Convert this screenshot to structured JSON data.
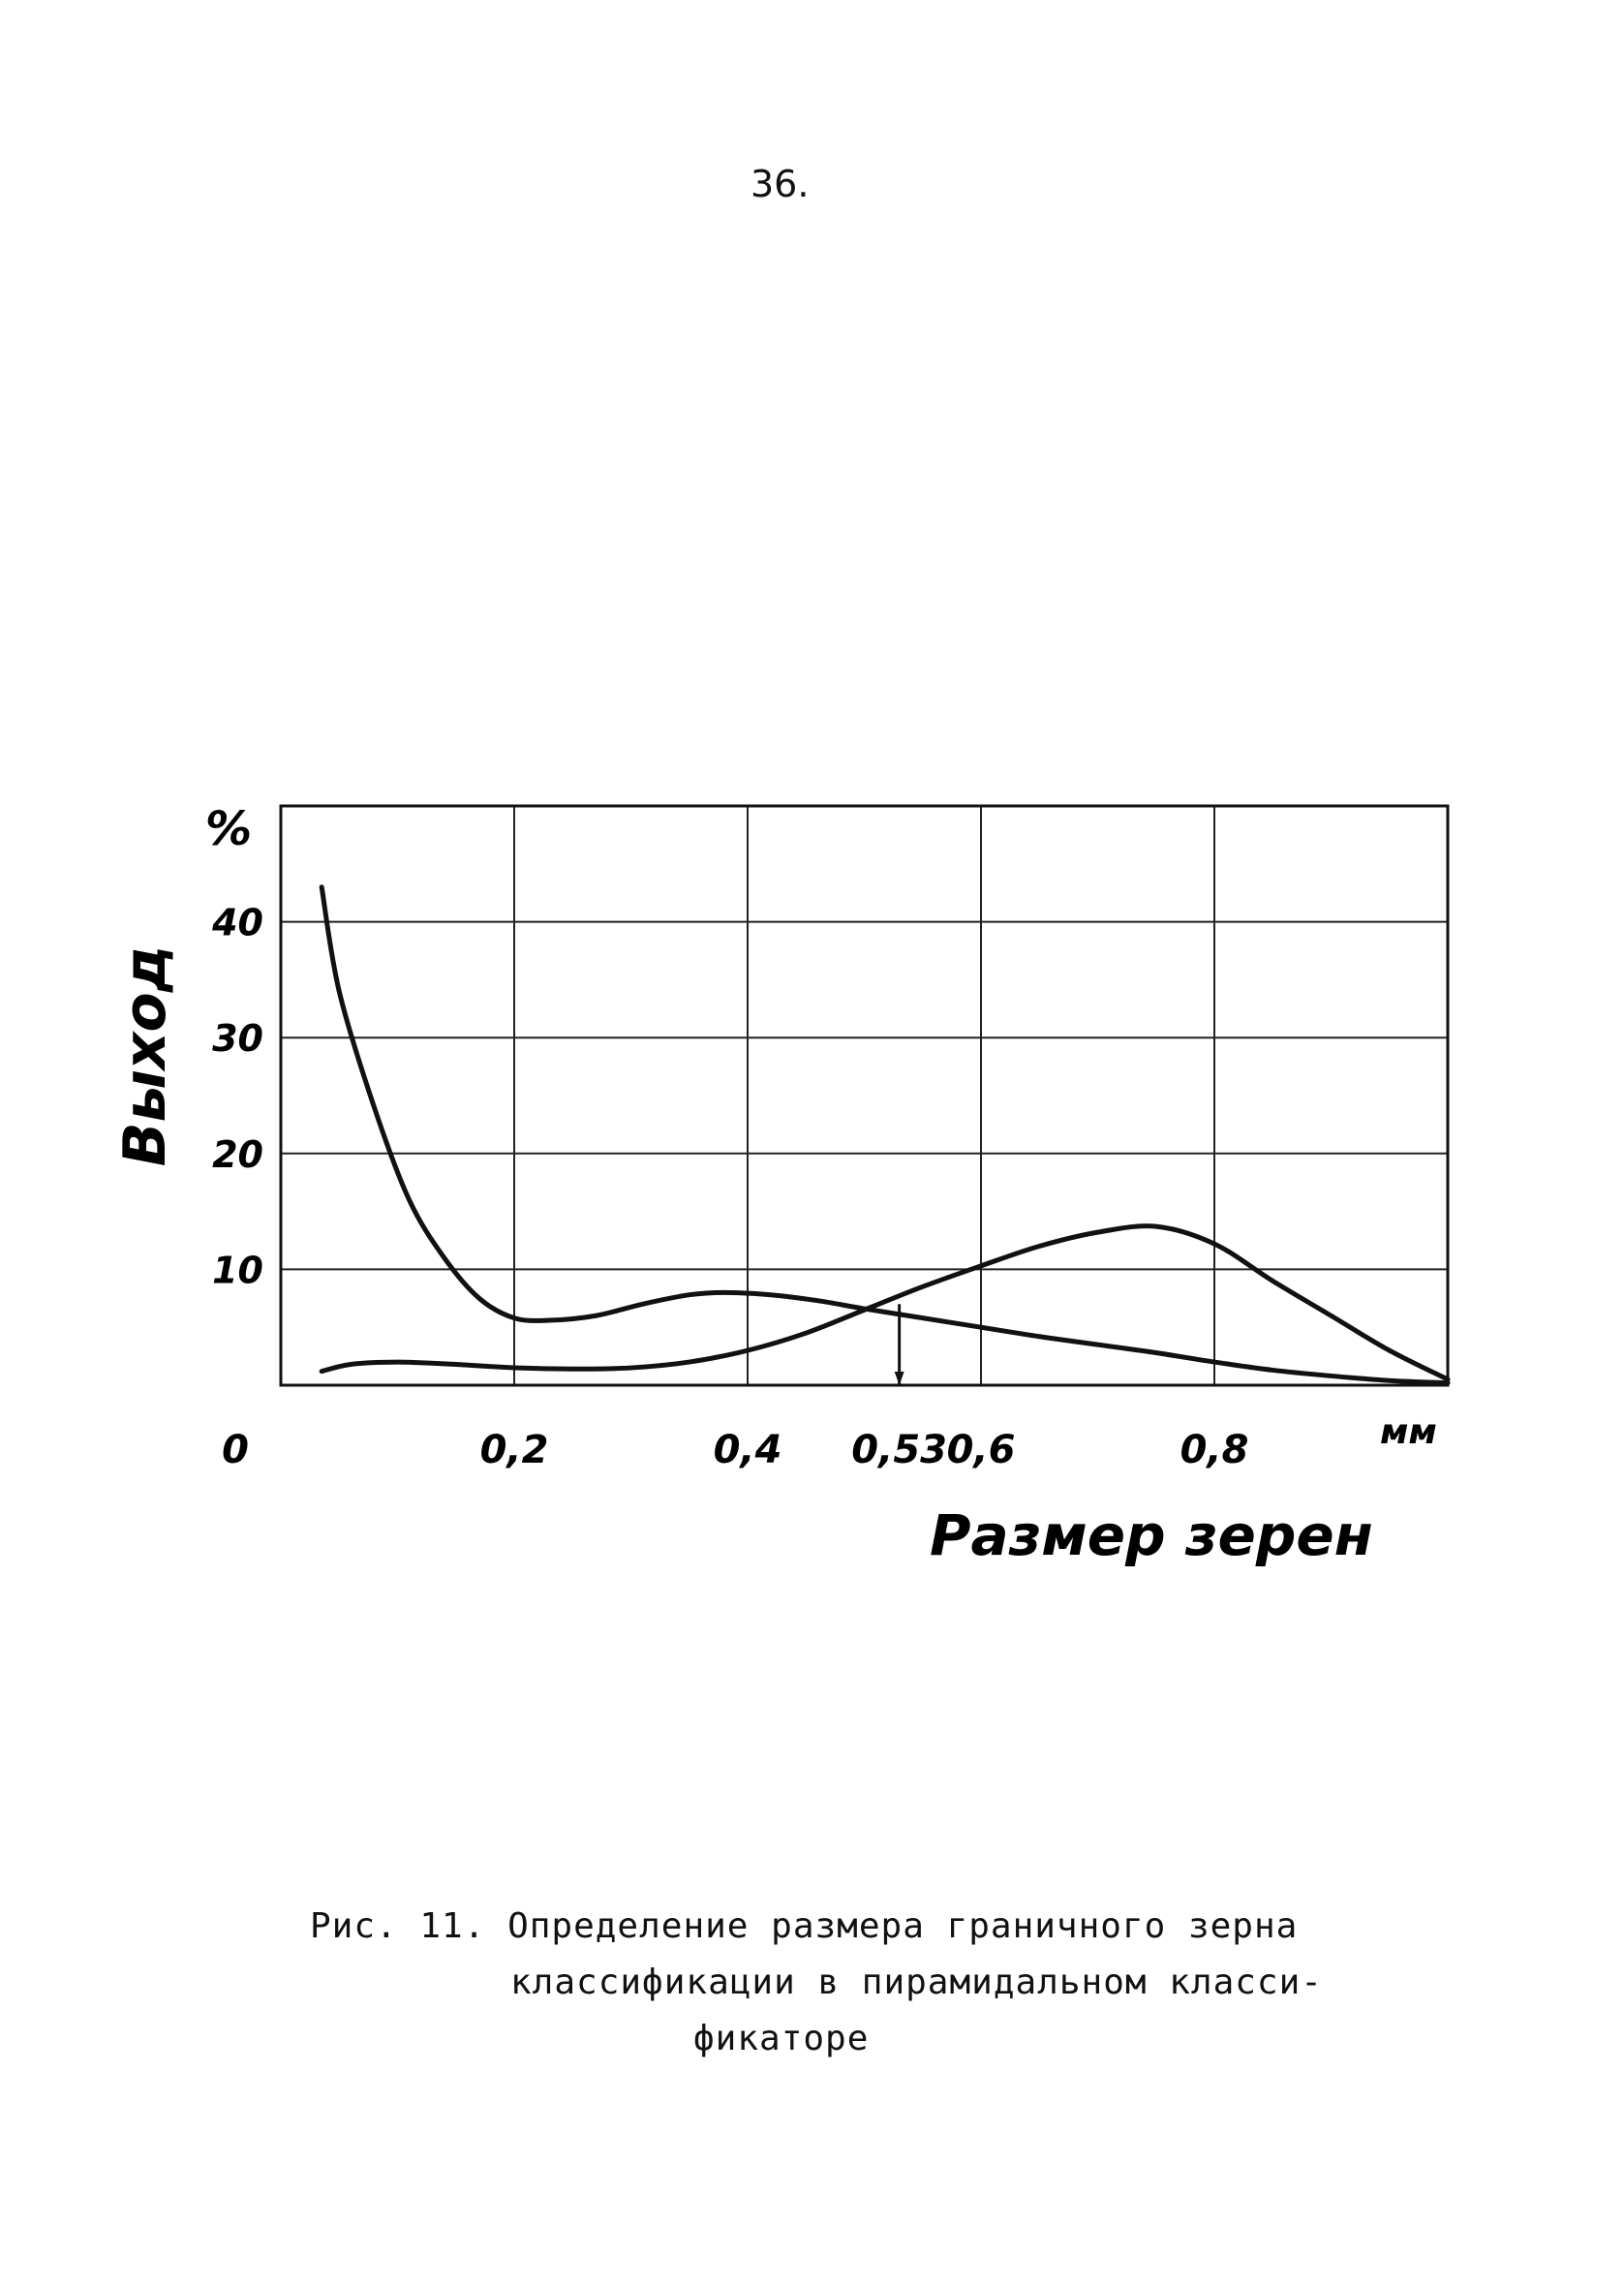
{
  "page": {
    "number": "36."
  },
  "chart_data": {
    "type": "line",
    "ylabel": "Выход",
    "y_unit": "%",
    "xlabel": "Размер зерен",
    "x_unit": "мм",
    "xlim": [
      0,
      1.0
    ],
    "ylim": [
      0,
      50
    ],
    "grid": true,
    "x_ticks": [
      {
        "value": 0,
        "label": "0"
      },
      {
        "value": 0.2,
        "label": "0,2"
      },
      {
        "value": 0.4,
        "label": "0,4"
      },
      {
        "value": 0.53,
        "label": "0,53"
      },
      {
        "value": 0.6,
        "label": "0,6"
      },
      {
        "value": 0.8,
        "label": "0,8"
      }
    ],
    "y_ticks": [
      {
        "value": 10,
        "label": "10"
      },
      {
        "value": 20,
        "label": "20"
      },
      {
        "value": 30,
        "label": "30"
      },
      {
        "value": 40,
        "label": "40"
      }
    ],
    "marker_x": 0.53,
    "series": [
      {
        "x": [
          0.035,
          0.05,
          0.08,
          0.11,
          0.14,
          0.17,
          0.2,
          0.23,
          0.27,
          0.31,
          0.35,
          0.38,
          0.42,
          0.46,
          0.5,
          0.55,
          0.6,
          0.65,
          0.7,
          0.75,
          0.8,
          0.85,
          0.9,
          0.95,
          1.0
        ],
        "values": [
          43,
          34,
          24,
          16,
          11,
          7.5,
          5.8,
          5.6,
          6.0,
          7.0,
          7.8,
          8.0,
          7.8,
          7.3,
          6.6,
          5.8,
          5.0,
          4.2,
          3.5,
          2.8,
          2.0,
          1.3,
          0.8,
          0.4,
          0.2
        ]
      },
      {
        "x": [
          0.035,
          0.06,
          0.1,
          0.15,
          0.2,
          0.25,
          0.3,
          0.35,
          0.4,
          0.45,
          0.5,
          0.55,
          0.6,
          0.65,
          0.7,
          0.75,
          0.8,
          0.85,
          0.9,
          0.95,
          1.0
        ],
        "values": [
          1.2,
          1.8,
          2.0,
          1.8,
          1.5,
          1.4,
          1.5,
          2.0,
          3.0,
          4.5,
          6.5,
          8.5,
          10.3,
          12.0,
          13.2,
          13.7,
          12.2,
          9.0,
          6.0,
          3.0,
          0.5
        ]
      }
    ]
  },
  "caption": {
    "line1": "Рис. 11. Определение размера граничного зерна",
    "line2": "классификации в пирамидальном класси-",
    "line3": "фикаторе"
  }
}
